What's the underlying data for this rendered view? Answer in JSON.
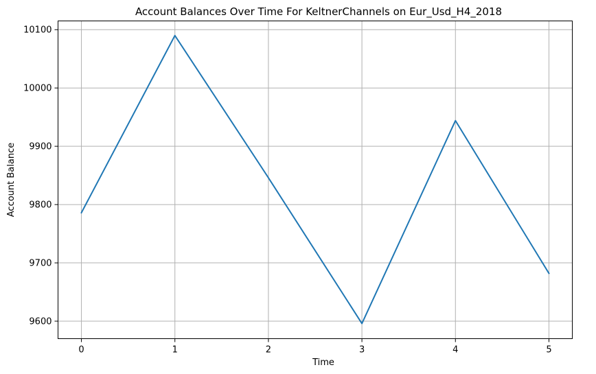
{
  "chart_data": {
    "type": "line",
    "title": "Account Balances Over Time For KeltnerChannels on Eur_Usd_H4_2018",
    "xlabel": "Time",
    "ylabel": "Account Balance",
    "x": [
      0,
      1,
      2,
      3,
      4,
      5
    ],
    "x_tick_labels": [
      "0",
      "1",
      "2",
      "3",
      "4",
      "5"
    ],
    "y_ticks": [
      9600,
      9700,
      9800,
      9900,
      10000,
      10100
    ],
    "y_tick_labels": [
      "9600",
      "9700",
      "9800",
      "9900",
      "10000",
      "10100"
    ],
    "xlim": [
      -0.25,
      5.25
    ],
    "ylim": [
      9570,
      10115
    ],
    "grid": true,
    "series": [
      {
        "color": "#1f77b4",
        "values": [
          9786,
          10090,
          9846,
          9596,
          9944,
          9682
        ]
      }
    ]
  }
}
